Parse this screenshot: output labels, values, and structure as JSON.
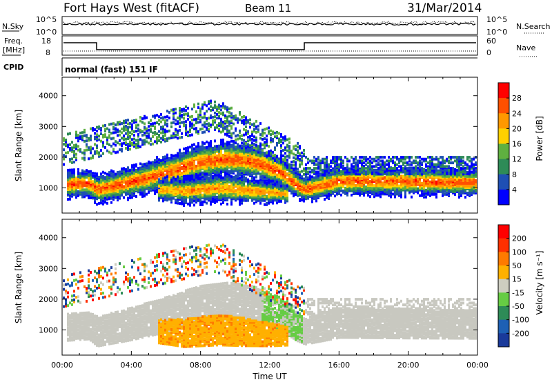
{
  "header": {
    "site": "Fort Hays West (fitACF)",
    "beam": "Beam 11",
    "date": "31/Mar/2014"
  },
  "noise_panel": {
    "left_label": "N.Sky",
    "right_label": "N.Search",
    "tick_labels": [
      "10^5",
      "10^0"
    ]
  },
  "freq_panel": {
    "left_label_line1": "Freq.",
    "left_label_line2": "[MHz]",
    "left_ticks": [
      "18",
      "8"
    ],
    "right_label": "Nave",
    "right_ticks": [
      "60",
      "0"
    ]
  },
  "cpid": {
    "label": "CPID",
    "value": "normal (fast) 151 IF"
  },
  "chart_data": [
    {
      "type": "heatmap",
      "quantity": "Power",
      "ylabel": "Slant Range [km]",
      "xlabel": "",
      "xlim": [
        0,
        24
      ],
      "ylim": [
        180,
        4600
      ],
      "yticks": [
        1000,
        2000,
        3000,
        4000
      ],
      "colorbar": {
        "label": "Power [dB]",
        "ticks": [
          "4",
          "8",
          "12",
          "16",
          "20",
          "24",
          "28"
        ],
        "range": [
          0,
          32
        ],
        "colors": [
          "#0000ff",
          "#1e4fb4",
          "#2e8b57",
          "#5fb040",
          "#ffd000",
          "#ff9800",
          "#ff5000",
          "#ff0000"
        ]
      },
      "bands": [
        {
          "name": "",
          "x": [
            0.2,
            1.5,
            2.0,
            4.0,
            6.0,
            8.0,
            9.5,
            11.0,
            12.5,
            13.5,
            14.0,
            16.0,
            20.0,
            24.0
          ],
          "center": [
            1150,
            1200,
            1000,
            1250,
            1550,
            1900,
            2000,
            1900,
            1600,
            1150,
            1000,
            1280,
            1260,
            1220
          ],
          "width": [
            300,
            300,
            320,
            350,
            380,
            400,
            400,
            380,
            350,
            300,
            280,
            320,
            320,
            300
          ],
          "peak_db": 26
        },
        {
          "name": "",
          "x": [
            5.5,
            7.0,
            9.0,
            10.5,
            12.0,
            13.0
          ],
          "center": [
            1000,
            950,
            1050,
            980,
            900,
            850
          ],
          "width": [
            250,
            300,
            330,
            300,
            250,
            200
          ],
          "peak_db": 22
        }
      ]
    },
    {
      "type": "heatmap",
      "quantity": "Velocity",
      "ylabel": "Slant Range [km]",
      "xlabel": "Time UT",
      "xlim": [
        0,
        24
      ],
      "ylim": [
        180,
        4600
      ],
      "yticks": [
        1000,
        2000,
        3000,
        4000
      ],
      "xtick_labels": [
        "00:00",
        "04:00",
        "08:00",
        "12:00",
        "16:00",
        "20:00",
        "00:00"
      ],
      "colorbar": {
        "label": "Velocity [m s⁻¹]",
        "ticks": [
          "200",
          "100",
          "50",
          "15",
          "-15",
          "-50",
          "-100",
          "-200"
        ],
        "colors": [
          "#1a3a9a",
          "#1e60b4",
          "#2e8b57",
          "#66cc44",
          "#cdcdc0",
          "#ffb000",
          "#ff7a00",
          "#ff3000",
          "#ff0000"
        ]
      }
    }
  ],
  "colors": {
    "axis": "#000000",
    "ground_scatter": "#c8c8c0"
  }
}
